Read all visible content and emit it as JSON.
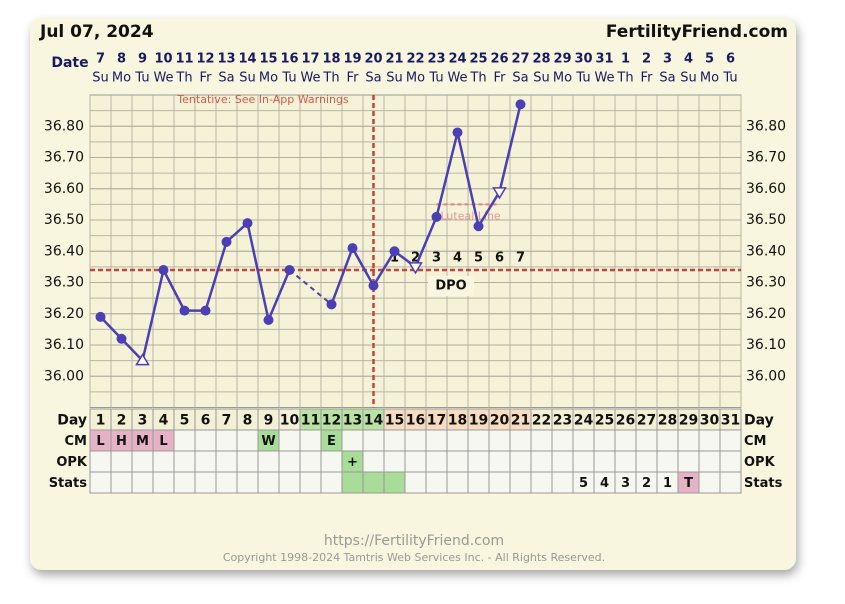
{
  "chart_data": {
    "type": "line",
    "title": "Jul 07, 2024",
    "site": "FertilityFriend.com",
    "x_label": "Date",
    "day_label": "Day",
    "tentative": "Tentative: See In-App Warnings",
    "dpo_label": "DPO",
    "luteal_label": "Luteal Line",
    "footer_url": "https://FertilityFriend.com",
    "copyright": "Copyright 1998-2024 Tamtris Web Services Inc. - All Rights Reserved.",
    "dates": [
      7,
      8,
      9,
      10,
      11,
      12,
      13,
      14,
      15,
      16,
      17,
      18,
      19,
      20,
      21,
      22,
      23,
      24,
      25,
      26,
      27,
      28,
      29,
      30,
      31,
      1,
      2,
      3,
      4,
      5,
      6
    ],
    "weekdays": [
      "Su",
      "Mo",
      "Tu",
      "We",
      "Th",
      "Fr",
      "Sa",
      "Su",
      "Mo",
      "Tu",
      "We",
      "Th",
      "Fr",
      "Sa",
      "Su",
      "Mo",
      "Tu",
      "We",
      "Th",
      "Fr",
      "Sa",
      "Su",
      "Mo",
      "Tu",
      "We",
      "Th",
      "Fr",
      "Sa",
      "Su",
      "Mo",
      "Tu"
    ],
    "days": [
      1,
      2,
      3,
      4,
      5,
      6,
      7,
      8,
      9,
      10,
      11,
      12,
      13,
      14,
      15,
      16,
      17,
      18,
      19,
      20,
      21,
      22,
      23,
      24,
      25,
      26,
      27,
      28,
      29,
      30,
      31
    ],
    "day_colors": [
      null,
      null,
      null,
      null,
      null,
      null,
      null,
      null,
      null,
      null,
      "#b9e2a3",
      "#b9e2a3",
      "#b9e2a3",
      "#b9e2a3",
      "#f7dcc2",
      "#f7dcc2",
      "#f7dcc2",
      "#f7dcc2",
      "#f7dcc2",
      "#f7dcc2",
      "#f7dcc2",
      null,
      null,
      null,
      null,
      null,
      null,
      null,
      null,
      null,
      null
    ],
    "values": [
      36.19,
      36.12,
      36.05,
      36.34,
      36.21,
      36.21,
      36.43,
      36.49,
      36.18,
      36.34,
      null,
      36.23,
      36.41,
      36.29,
      36.4,
      36.35,
      36.51,
      36.78,
      36.48,
      36.59,
      36.87,
      null,
      null,
      null,
      null,
      null,
      null,
      null,
      null,
      null,
      null
    ],
    "markers": [
      "circle",
      "circle",
      "triangle-up",
      "circle",
      "circle",
      "circle",
      "circle",
      "circle",
      "circle",
      "circle",
      null,
      "circle",
      "circle",
      "circle",
      "circle",
      "triangle-down",
      "circle",
      "circle",
      "circle",
      "triangle-down",
      "circle",
      null,
      null,
      null,
      null,
      null,
      null,
      null,
      null,
      null,
      null
    ],
    "color": "#4a3fb4",
    "coverline": 36.34,
    "ovulation_day": 14,
    "luteal": {
      "value": 36.55,
      "from_day": 17,
      "to_day": 20
    },
    "dpo": [
      null,
      null,
      null,
      null,
      null,
      null,
      null,
      null,
      null,
      null,
      null,
      null,
      null,
      null,
      1,
      2,
      3,
      4,
      5,
      6,
      7,
      null,
      null,
      null,
      null,
      null,
      null,
      null,
      null,
      null,
      null
    ],
    "ylim": [
      35.9,
      36.9
    ],
    "yticks": [
      {
        "value": 36.0,
        "label": "36.00"
      },
      {
        "value": 36.1,
        "label": "36.10"
      },
      {
        "value": 36.2,
        "label": "36.20"
      },
      {
        "value": 36.3,
        "label": "36.30"
      },
      {
        "value": 36.4,
        "label": "36.40"
      },
      {
        "value": 36.5,
        "label": "36.50"
      },
      {
        "value": 36.6,
        "label": "36.60"
      },
      {
        "value": 36.7,
        "label": "36.70"
      },
      {
        "value": 36.8,
        "label": "36.80"
      }
    ],
    "rows": [
      {
        "label": "CM",
        "cells": [
          {
            "day": 1,
            "text": "L",
            "color": "#e6b3c6"
          },
          {
            "day": 2,
            "text": "H",
            "color": "#e6b3c6"
          },
          {
            "day": 3,
            "text": "M",
            "color": "#e6b3c6"
          },
          {
            "day": 4,
            "text": "L",
            "color": "#e6b3c6"
          },
          {
            "day": 9,
            "text": "W",
            "color": "#a8dc98"
          },
          {
            "day": 12,
            "text": "E",
            "color": "#a8dc98"
          }
        ]
      },
      {
        "label": "OPK",
        "cells": [
          {
            "day": 13,
            "text": "+",
            "color": "#a8dc98"
          }
        ]
      },
      {
        "label": "Stats",
        "cells": [
          {
            "day": 13,
            "color": "#a8dc98"
          },
          {
            "day": 14,
            "color": "#a8dc98"
          },
          {
            "day": 15,
            "color": "#a8dc98"
          },
          {
            "day": 24,
            "text": "5"
          },
          {
            "day": 25,
            "text": "4"
          },
          {
            "day": 26,
            "text": "3"
          },
          {
            "day": 27,
            "text": "2"
          },
          {
            "day": 28,
            "text": "1"
          },
          {
            "day": 29,
            "text": "T",
            "color": "#e6b3c6"
          }
        ]
      }
    ]
  }
}
